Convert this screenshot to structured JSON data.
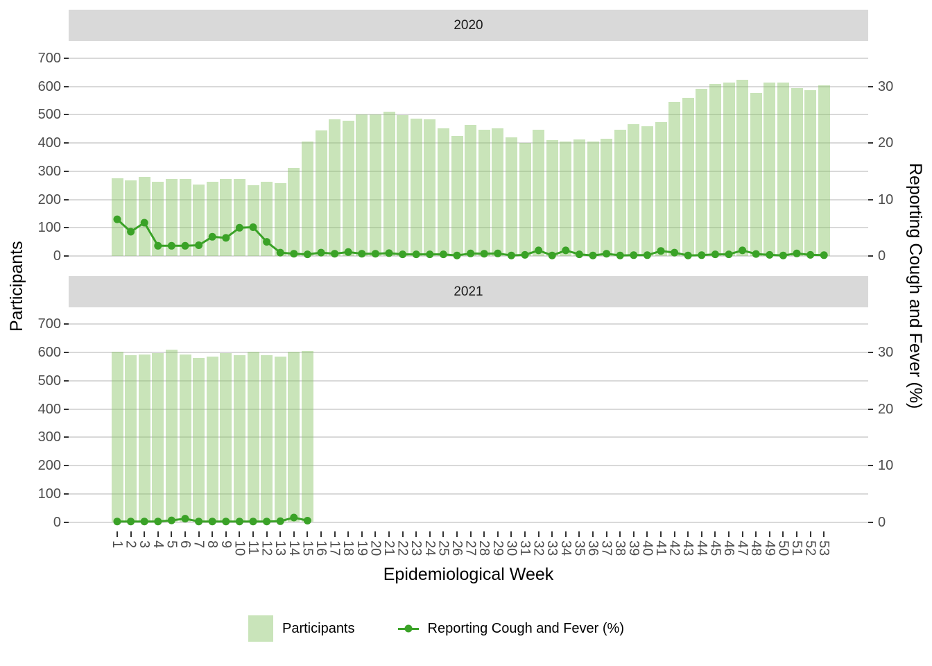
{
  "chart_data": {
    "type": "bar",
    "combo": [
      "bar",
      "line"
    ],
    "title": "",
    "xlabel": "Epidemiological Week",
    "ylabel_left": "Participants",
    "ylabel_right": "Reporting Cough and Fever (%)",
    "ylim_left": [
      0,
      700
    ],
    "ylim_right": [
      0,
      30
    ],
    "grid": true,
    "legend_position": "bottom",
    "axes": {
      "y_left_ticks": [
        0,
        100,
        200,
        300,
        400,
        500,
        600,
        700
      ],
      "y_right_ticks": [
        0,
        10,
        20,
        30
      ],
      "x_ticks": [
        1,
        2,
        3,
        4,
        5,
        6,
        7,
        8,
        9,
        10,
        11,
        12,
        13,
        14,
        15,
        16,
        17,
        18,
        19,
        20,
        21,
        22,
        23,
        24,
        25,
        26,
        27,
        28,
        29,
        30,
        31,
        32,
        33,
        34,
        35,
        36,
        37,
        38,
        39,
        40,
        41,
        42,
        43,
        44,
        45,
        46,
        47,
        48,
        49,
        50,
        51,
        52,
        53
      ]
    },
    "facets": [
      {
        "title": "2020",
        "weeks": [
          1,
          2,
          3,
          4,
          5,
          6,
          7,
          8,
          9,
          10,
          11,
          12,
          13,
          14,
          15,
          16,
          17,
          18,
          19,
          20,
          21,
          22,
          23,
          24,
          25,
          26,
          27,
          28,
          29,
          30,
          31,
          32,
          33,
          34,
          35,
          36,
          37,
          38,
          39,
          40,
          41,
          42,
          43,
          44,
          45,
          46,
          47,
          48,
          49,
          50,
          51,
          52,
          53
        ],
        "participants": [
          276,
          268,
          281,
          262,
          273,
          272,
          252,
          263,
          273,
          273,
          250,
          263,
          257,
          313,
          405,
          444,
          483,
          478,
          500,
          501,
          511,
          499,
          487,
          485,
          452,
          425,
          465,
          447,
          452,
          420,
          400,
          447,
          411,
          405,
          413,
          404,
          416,
          446,
          467,
          459,
          475,
          544,
          560,
          591,
          609,
          614,
          624,
          577,
          615,
          613,
          595,
          587,
          605
        ],
        "cough_fever_pct": [
          6.5,
          4.3,
          5.9,
          1.8,
          1.8,
          1.8,
          1.9,
          3.4,
          3.2,
          5.0,
          5.1,
          2.5,
          0.6,
          0.4,
          0.3,
          0.6,
          0.4,
          0.7,
          0.4,
          0.4,
          0.5,
          0.3,
          0.3,
          0.3,
          0.3,
          0.1,
          0.45,
          0.4,
          0.45,
          0.1,
          0.2,
          1.0,
          0.1,
          1.0,
          0.3,
          0.1,
          0.4,
          0.1,
          0.15,
          0.15,
          0.9,
          0.6,
          0.1,
          0.15,
          0.3,
          0.3,
          1.0,
          0.35,
          0.2,
          0.1,
          0.45,
          0.2,
          0.15
        ]
      },
      {
        "title": "2021",
        "weeks": [
          1,
          2,
          3,
          4,
          5,
          6,
          7,
          8,
          9,
          10,
          11,
          12,
          13,
          14,
          15
        ],
        "participants": [
          603,
          591,
          593,
          597,
          611,
          592,
          582,
          586,
          598,
          590,
          603,
          590,
          585,
          604,
          605
        ],
        "cough_fever_pct": [
          0.1,
          0.1,
          0.1,
          0.1,
          0.3,
          0.6,
          0.1,
          0.1,
          0.1,
          0.1,
          0.1,
          0.1,
          0.15,
          0.8,
          0.25
        ]
      }
    ],
    "legend": [
      {
        "label": "Participants",
        "type": "fill",
        "color": "#c9e4ba"
      },
      {
        "label": "Reporting Cough and Fever (%)",
        "type": "line-point",
        "color": "#3aa227"
      }
    ],
    "colors": {
      "bar_fill": "rgba(135,195,99,0.45)",
      "bar_fill_solid": "#c9e4ba",
      "line": "#3aa227",
      "strip_bg": "#d9d9d9",
      "gridline": "#d9d9d9",
      "tick_label": "#4d4d4d",
      "tick_mark": "#333333",
      "axis_title": "#000000"
    }
  }
}
